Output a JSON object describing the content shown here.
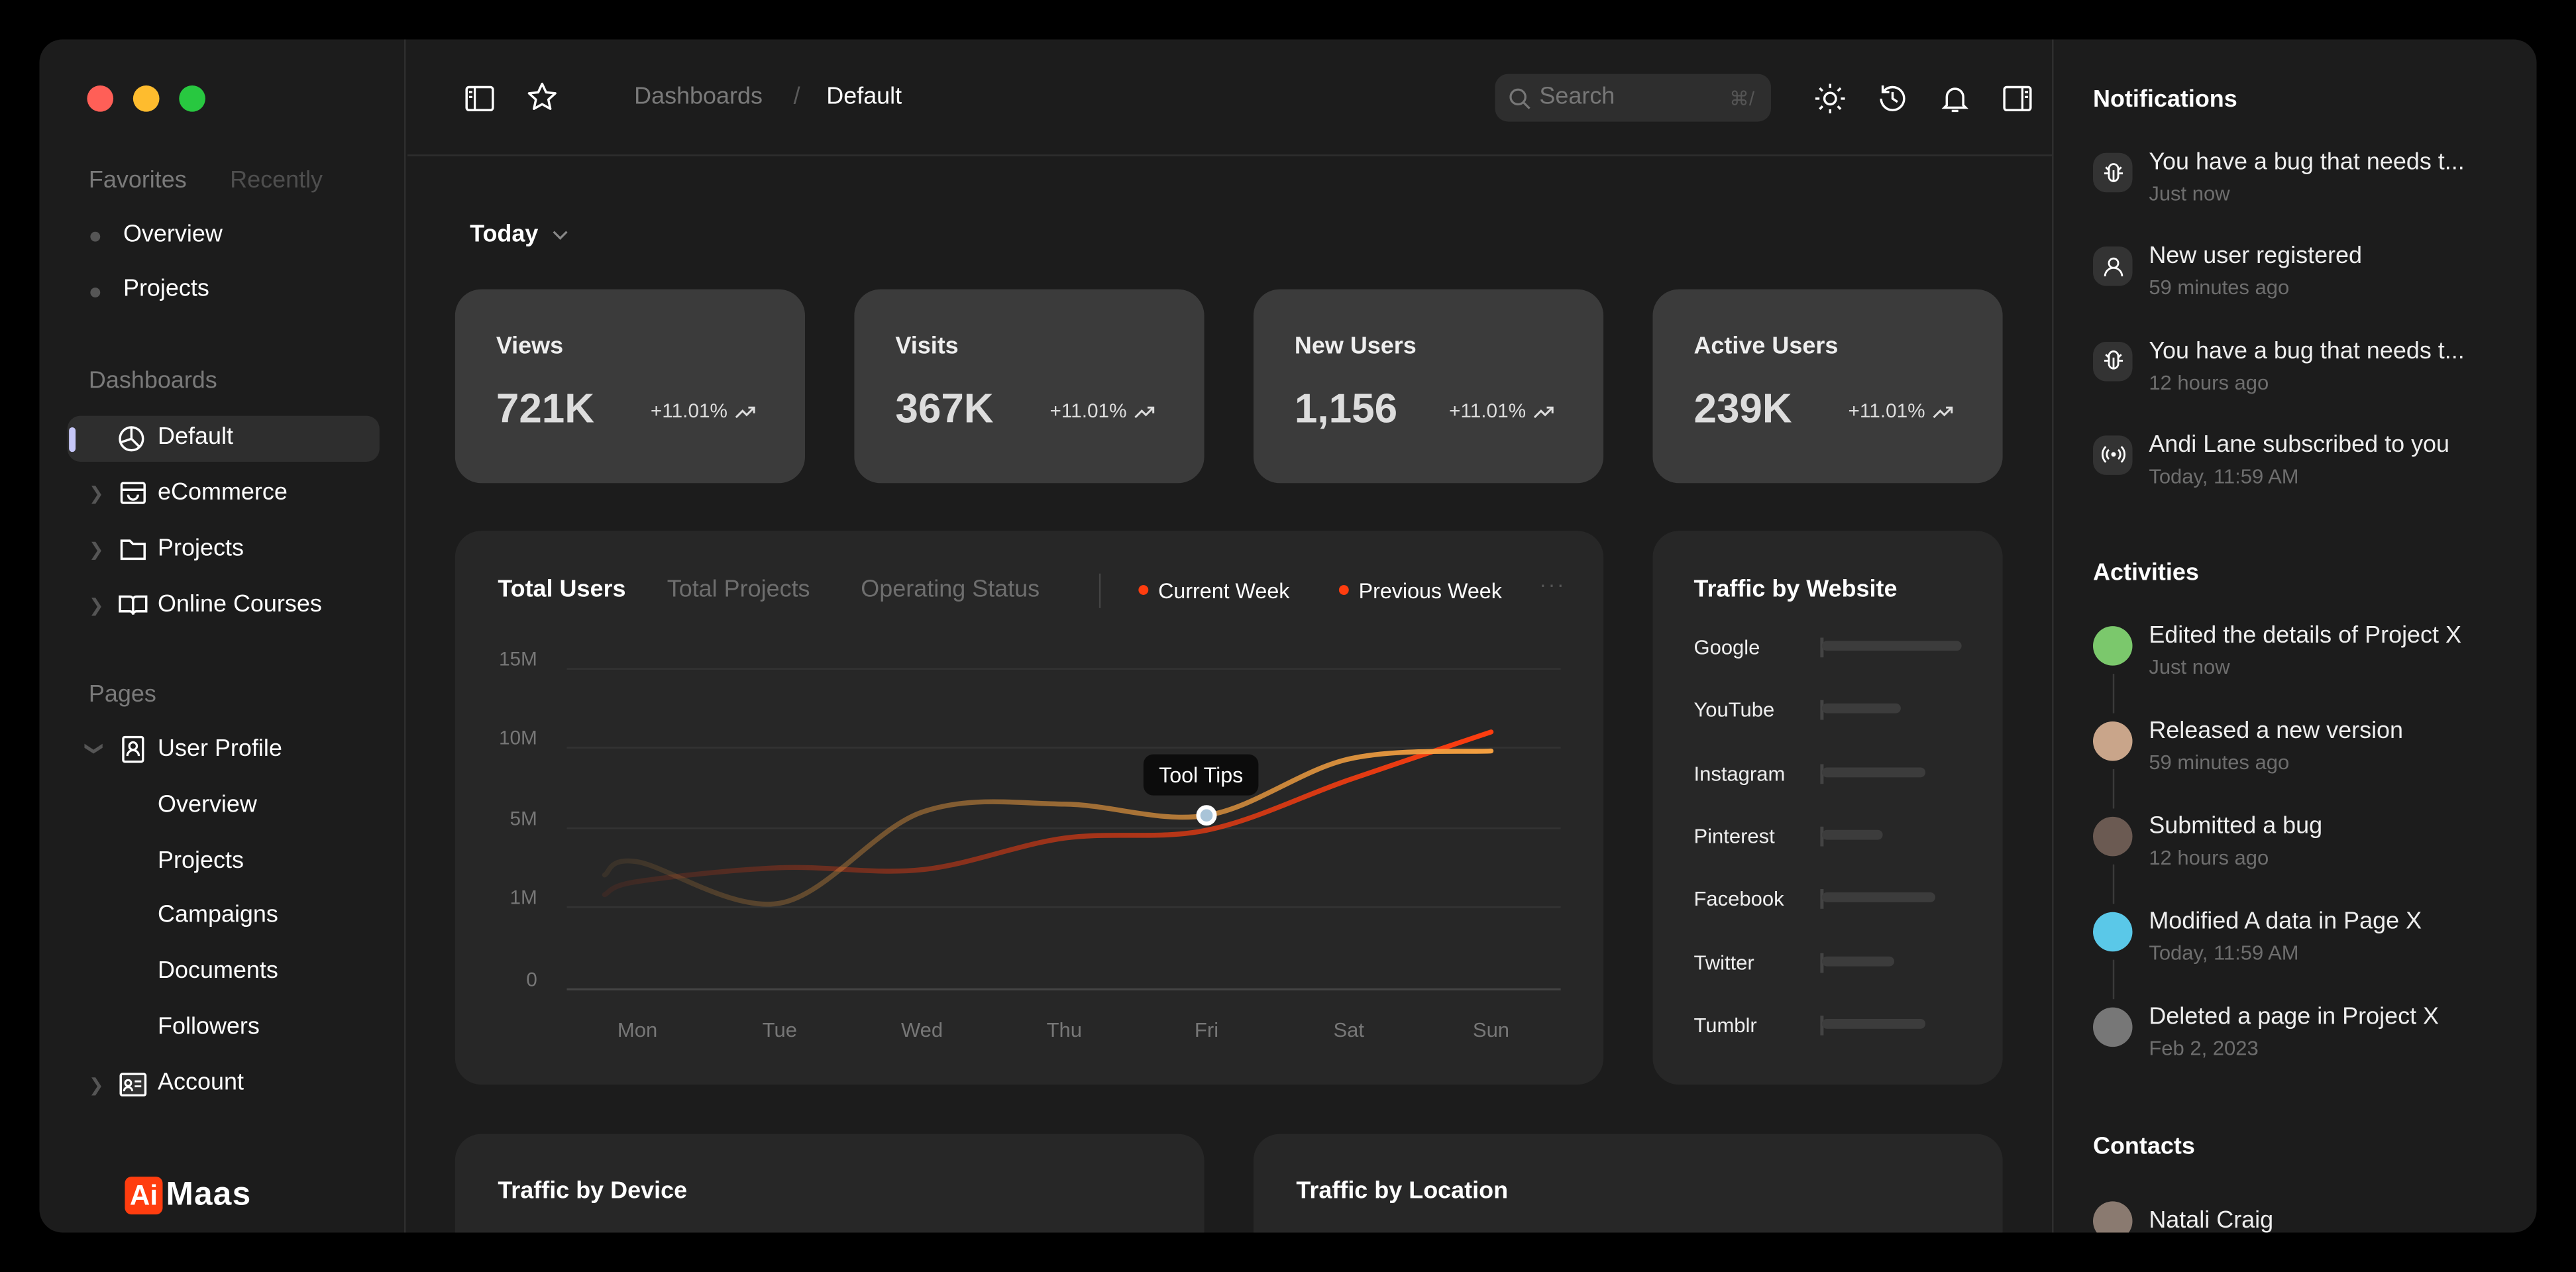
{
  "window": {
    "controls": [
      "close",
      "minimize",
      "maximize"
    ],
    "colors": {
      "close": "#ff5f57",
      "minimize": "#febc2e",
      "maximize": "#28c840"
    }
  },
  "sidebar": {
    "tabs": [
      "Favorites",
      "Recently"
    ],
    "favorites": [
      "Overview",
      "Projects"
    ],
    "dashboards_title": "Dashboards",
    "dashboards": [
      {
        "label": "Default",
        "icon": "pie-chart-icon",
        "selected": true
      },
      {
        "label": "eCommerce",
        "icon": "shopping-bag-icon"
      },
      {
        "label": "Projects",
        "icon": "folder-icon"
      },
      {
        "label": "Online Courses",
        "icon": "book-icon"
      }
    ],
    "pages_title": "Pages",
    "user_profile": "User Profile",
    "user_profile_items": [
      "Overview",
      "Projects",
      "Campaigns",
      "Documents",
      "Followers"
    ],
    "account": "Account",
    "logo": {
      "badge": "Ai",
      "text": "Maas",
      "color": "#ff3d0f"
    }
  },
  "header": {
    "breadcrumb": [
      "Dashboards",
      "/",
      "Default"
    ],
    "search_placeholder": "Search",
    "search_shortcut": "⌘/",
    "icons": [
      "sun-icon",
      "history-icon",
      "bell-icon",
      "panel-icon"
    ]
  },
  "filter": {
    "label": "Today"
  },
  "stats": [
    {
      "label": "Views",
      "value": "721K",
      "change": "+11.01%"
    },
    {
      "label": "Visits",
      "value": "367K",
      "change": "+11.01%"
    },
    {
      "label": "New Users",
      "value": "1,156",
      "change": "+11.01%"
    },
    {
      "label": "Active Users",
      "value": "239K",
      "change": "+11.01%"
    }
  ],
  "main_chart": {
    "tabs": [
      "Total Users",
      "Total Projects",
      "Operating Status"
    ],
    "active_tab": "Total Users",
    "tooltip": "Tool Tips"
  },
  "chart_data": [
    {
      "type": "line",
      "categories": [
        "Mon",
        "Tue",
        "Wed",
        "Thu",
        "Fri",
        "Sat",
        "Sun"
      ],
      "yticks": [
        "0",
        "1M",
        "5M",
        "10M",
        "15M"
      ],
      "ytick_values": [
        0,
        1,
        5,
        10,
        15
      ],
      "ylim": [
        0,
        15
      ],
      "grid": true,
      "legend": "top-right",
      "series": [
        {
          "name": "Current Week",
          "values": [
            3.3,
            1.2,
            6.0,
            6.5,
            5.8,
            9.3,
            9.8
          ],
          "color": "#f0a040"
        },
        {
          "name": "Previous Week",
          "values": [
            2.3,
            3.0,
            2.9,
            4.5,
            4.9,
            8.0,
            11.0
          ],
          "color": "#ff3d0f"
        }
      ],
      "tooltip_point": {
        "category": "Fri",
        "series": "Current Week"
      }
    },
    {
      "type": "bar",
      "title": "Traffic by Website",
      "categories": [
        "Google",
        "YouTube",
        "Instagram",
        "Pinterest",
        "Facebook",
        "Twitter",
        "Tumblr"
      ],
      "values": [
        100,
        57,
        74,
        44,
        81,
        52,
        74
      ]
    }
  ],
  "bottom_cards": [
    "Traffic by Device",
    "Traffic by Location"
  ],
  "notifications": {
    "title": "Notifications",
    "items": [
      {
        "text": "You have a bug that needs t...",
        "time": "Just now",
        "icon": "bug-icon"
      },
      {
        "text": "New user registered",
        "time": "59 minutes ago",
        "icon": "user-icon"
      },
      {
        "text": "You have a bug that needs t...",
        "time": "12 hours ago",
        "icon": "bug-icon"
      },
      {
        "text": "Andi Lane subscribed to you",
        "time": "Today, 11:59 AM",
        "icon": "broadcast-icon"
      }
    ]
  },
  "activities": {
    "title": "Activities",
    "items": [
      {
        "text": "Edited the details of Project X",
        "time": "Just now",
        "color": "#7bc86c"
      },
      {
        "text": "Released a new version",
        "time": "59 minutes ago",
        "color": "#c9a58a"
      },
      {
        "text": "Submitted a bug",
        "time": "12 hours ago",
        "color": "#6b5a52"
      },
      {
        "text": "Modified A data in Page X",
        "time": "Today, 11:59 AM",
        "color": "#5ac8e8"
      },
      {
        "text": "Deleted a page in Project X",
        "time": "Feb 2, 2023",
        "color": "#777"
      }
    ]
  },
  "contacts": {
    "title": "Contacts",
    "items": [
      "Natali Craig"
    ]
  }
}
